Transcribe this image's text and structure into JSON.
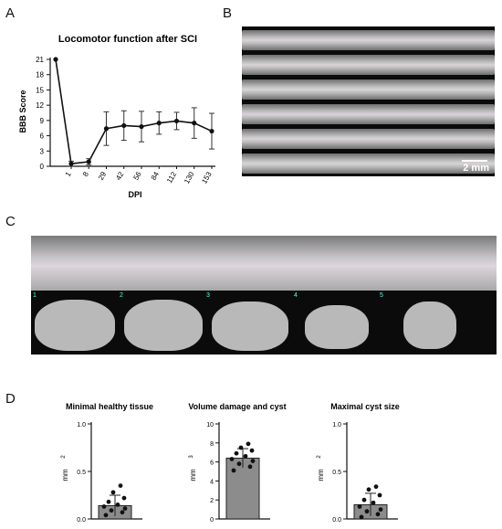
{
  "panels": {
    "a": {
      "letter": "A"
    },
    "b": {
      "letter": "B",
      "scale_bar": "2 mm"
    },
    "c": {
      "letter": "C",
      "markers": [
        "1",
        "2",
        "3",
        "4",
        "5"
      ]
    },
    "d": {
      "letter": "D"
    }
  },
  "chart_data": [
    {
      "type": "line",
      "title": "Locomotor function after SCI",
      "xlabel": "DPI",
      "ylabel": "BBB Score",
      "categories": [
        "1",
        "8",
        "29",
        "42",
        "56",
        "84",
        "112",
        "130",
        "153"
      ],
      "x_preinjury": 0,
      "values_preinjury": 21,
      "values": [
        0.5,
        0.9,
        7.4,
        8.0,
        7.8,
        8.5,
        8.9,
        8.5,
        6.9
      ],
      "error": [
        0.5,
        0.6,
        3.3,
        2.9,
        3.0,
        2.2,
        1.7,
        3.0,
        3.5
      ],
      "ylim": [
        0,
        21
      ],
      "yticks": [
        "0",
        "3",
        "6",
        "9",
        "12",
        "15",
        "18",
        "21"
      ]
    },
    {
      "type": "bar",
      "title": "Minimal healthy tissue",
      "ylabel": "mm",
      "ylabel_sup": "2",
      "ylim": [
        0,
        1.0
      ],
      "yticks": [
        "0.0",
        "0.5",
        "1.0"
      ],
      "values": [
        0.14
      ],
      "error": [
        0.11
      ],
      "points": [
        0.04,
        0.07,
        0.09,
        0.11,
        0.13,
        0.15,
        0.18,
        0.22,
        0.28,
        0.35
      ]
    },
    {
      "type": "bar",
      "title": "Volume damage and cyst",
      "ylabel": "mm",
      "ylabel_sup": "3",
      "ylim": [
        0,
        10
      ],
      "yticks": [
        "0",
        "2",
        "4",
        "6",
        "8",
        "10"
      ],
      "values": [
        6.4
      ],
      "error": [
        1.0
      ],
      "points": [
        5.1,
        5.5,
        5.8,
        6.1,
        6.3,
        6.6,
        6.9,
        7.2,
        7.5,
        7.9
      ]
    },
    {
      "type": "bar",
      "title": "Maximal cyst size",
      "ylabel": "mm",
      "ylabel_sup": "2",
      "ylim": [
        0,
        1.0
      ],
      "yticks": [
        "0.0",
        "0.5",
        "1.0"
      ],
      "values": [
        0.15
      ],
      "error": [
        0.12
      ],
      "points": [
        0.02,
        0.05,
        0.08,
        0.1,
        0.13,
        0.17,
        0.2,
        0.25,
        0.31,
        0.34
      ]
    }
  ]
}
